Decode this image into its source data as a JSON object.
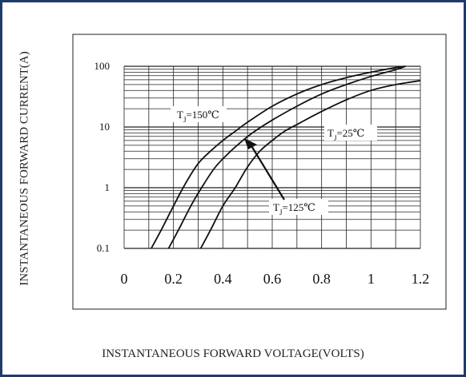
{
  "chart_data": {
    "type": "line",
    "xlabel": "INSTANTANEOUS FORWARD VOLTAGE(VOLTS)",
    "ylabel": "INSTANTANEOUS FORWARD CURRENT(A)",
    "xlim": [
      0,
      1.2
    ],
    "ylim": [
      0.1,
      100
    ],
    "yscale": "log",
    "x_ticks": [
      "0",
      "0.2",
      "0.4",
      "0.6",
      "0.8",
      "1",
      "1.2"
    ],
    "y_ticks": [
      "0.1",
      "1",
      "10",
      "100"
    ],
    "grid": true,
    "series": [
      {
        "name": "TJ=150℃",
        "x": [
          0.11,
          0.15,
          0.2,
          0.25,
          0.3,
          0.35,
          0.4,
          0.45,
          0.5,
          0.6,
          0.7,
          0.8,
          0.9,
          1.0,
          1.1,
          1.14
        ],
        "y": [
          0.1,
          0.2,
          0.5,
          1.2,
          2.5,
          4.0,
          6.0,
          8.5,
          12,
          22,
          35,
          50,
          65,
          80,
          95,
          100
        ]
      },
      {
        "name": "TJ=125℃",
        "x": [
          0.18,
          0.22,
          0.27,
          0.32,
          0.37,
          0.42,
          0.47,
          0.52,
          0.6,
          0.7,
          0.8,
          0.9,
          1.0,
          1.1,
          1.14
        ],
        "y": [
          0.1,
          0.2,
          0.5,
          1.1,
          2.2,
          3.6,
          5.5,
          8,
          13,
          22,
          35,
          50,
          68,
          88,
          100
        ]
      },
      {
        "name": "TJ=25℃",
        "x": [
          0.31,
          0.35,
          0.4,
          0.45,
          0.5,
          0.55,
          0.6,
          0.65,
          0.7,
          0.8,
          0.9,
          1.0,
          1.1,
          1.2
        ],
        "y": [
          0.1,
          0.2,
          0.5,
          1.0,
          2.2,
          4.0,
          6.0,
          8.5,
          11,
          18,
          28,
          40,
          50,
          58
        ]
      }
    ],
    "labels": [
      {
        "base": "T",
        "sub": "J",
        "rest": "=150℃"
      },
      {
        "base": "T",
        "sub": "J",
        "rest": "=25℃"
      },
      {
        "base": "T",
        "sub": "J",
        "rest": "=125℃"
      }
    ]
  }
}
